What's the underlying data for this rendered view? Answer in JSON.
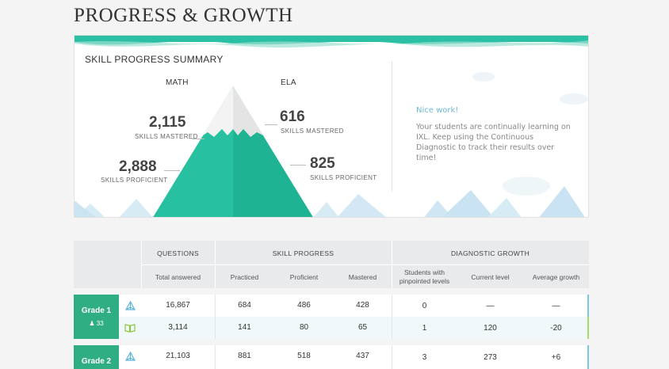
{
  "page": {
    "title": "PROGRESS & GROWTH"
  },
  "summary": {
    "title": "SKILL PROGRESS SUMMARY",
    "math": {
      "label": "MATH",
      "mastered": "2,115",
      "mastered_label": "SKILLS MASTERED",
      "proficient": "2,888",
      "proficient_label": "SKILLS PROFICIENT"
    },
    "ela": {
      "label": "ELA",
      "mastered": "616",
      "mastered_label": "SKILLS MASTERED",
      "proficient": "825",
      "proficient_label": "SKILLS PROFICIENT"
    },
    "message": {
      "title": "Nice work!",
      "body": "Your students are continually learning on IXL. Keep using the Continuous Diagnostic to track their results over time!"
    },
    "colors": {
      "mountain_left": "#27c0a0",
      "mountain_right": "#1db393",
      "wave": "#2bbfa4",
      "snow": "#e8e8e8",
      "bg_mountain": "#c9e3f3"
    }
  },
  "table": {
    "groups": {
      "questions": "QUESTIONS",
      "skill_progress": "SKILL PROGRESS",
      "diagnostic_growth": "DIAGNOSTIC GROWTH"
    },
    "columns": {
      "total_answered": "Total answered",
      "practiced": "Practiced",
      "proficient": "Proficient",
      "mastered": "Mastered",
      "pinpointed_1": "Students with",
      "pinpointed_2": "pinpointed levels",
      "current_level": "Current level",
      "average_growth": "Average growth"
    },
    "grades": [
      {
        "name": "Grade 1",
        "students": "33",
        "math": {
          "icon": "math-pyramid-icon",
          "total": "16,867",
          "practiced": "684",
          "proficient": "486",
          "mastered": "428",
          "pinpointed": "0",
          "current": "—",
          "growth": "—"
        },
        "ela": {
          "icon": "ela-book-icon",
          "total": "3,114",
          "practiced": "141",
          "proficient": "80",
          "mastered": "65",
          "pinpointed": "1",
          "current": "120",
          "growth": "-20"
        }
      },
      {
        "name": "Grade 2",
        "math": {
          "icon": "math-pyramid-icon",
          "total": "21,103",
          "practiced": "881",
          "proficient": "518",
          "mastered": "437",
          "pinpointed": "3",
          "current": "273",
          "growth": "+6"
        }
      }
    ]
  }
}
